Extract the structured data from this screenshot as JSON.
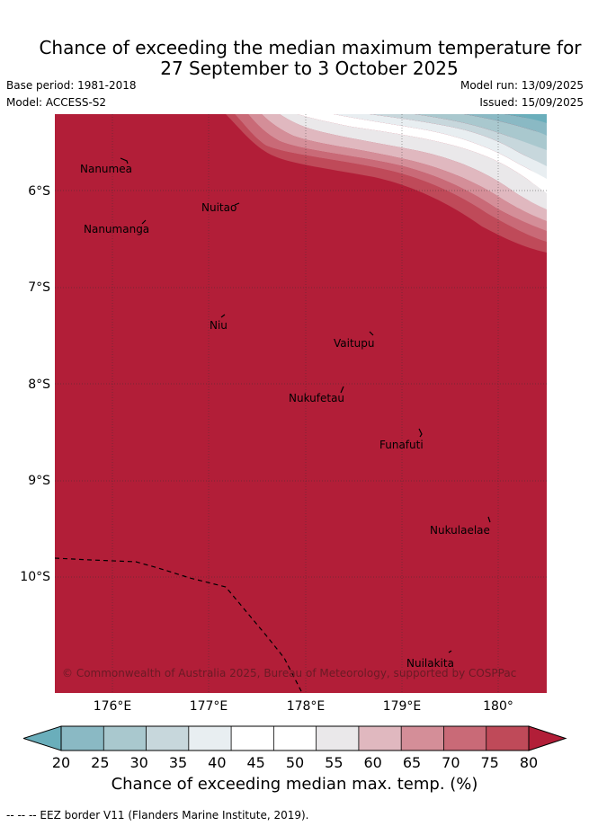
{
  "title": {
    "line1": "Chance of exceeding the median maximum temperature for",
    "line2": "27 September to 3 October 2025"
  },
  "meta": {
    "base_period": "Base period: 1981-2018",
    "model": "Model: ACCESS-S2",
    "model_run": "Model run: 13/09/2025",
    "issued": "Issued: 15/09/2025"
  },
  "map": {
    "latitude_labels": [
      "6°S",
      "7°S",
      "8°S",
      "9°S",
      "10°S"
    ],
    "longitude_labels": [
      "176°E",
      "177°E",
      "178°E",
      "179°E",
      "180°"
    ],
    "places": [
      "Nanumea",
      "Nuitao",
      "Nanumanga",
      "Niu",
      "Vaitupu",
      "Nukufetau",
      "Funafuti",
      "Nukulaelae",
      "Nuilakita"
    ],
    "copyright": "© Commonwealth of Australia 2025, Bureau of Meteorology, supported by COSPPac",
    "background_color": "#b21e38"
  },
  "colorbar": {
    "ticks": [
      "20",
      "25",
      "30",
      "35",
      "40",
      "45",
      "50",
      "55",
      "60",
      "65",
      "70",
      "75",
      "80"
    ],
    "colors": [
      "#6aaebb",
      "#8ab9c4",
      "#a9c8ce",
      "#c7d7dc",
      "#e8eef1",
      "#ffffff",
      "#ffffff",
      "#eae8ea",
      "#e0b8bf",
      "#d48e98",
      "#c96a77",
      "#bf4a59",
      "#b21e38"
    ],
    "label": "Chance of exceeding median max. temp. (%)"
  },
  "footnote": "-- -- -- EEZ border V11 (Flanders Marine Institute, 2019)."
}
